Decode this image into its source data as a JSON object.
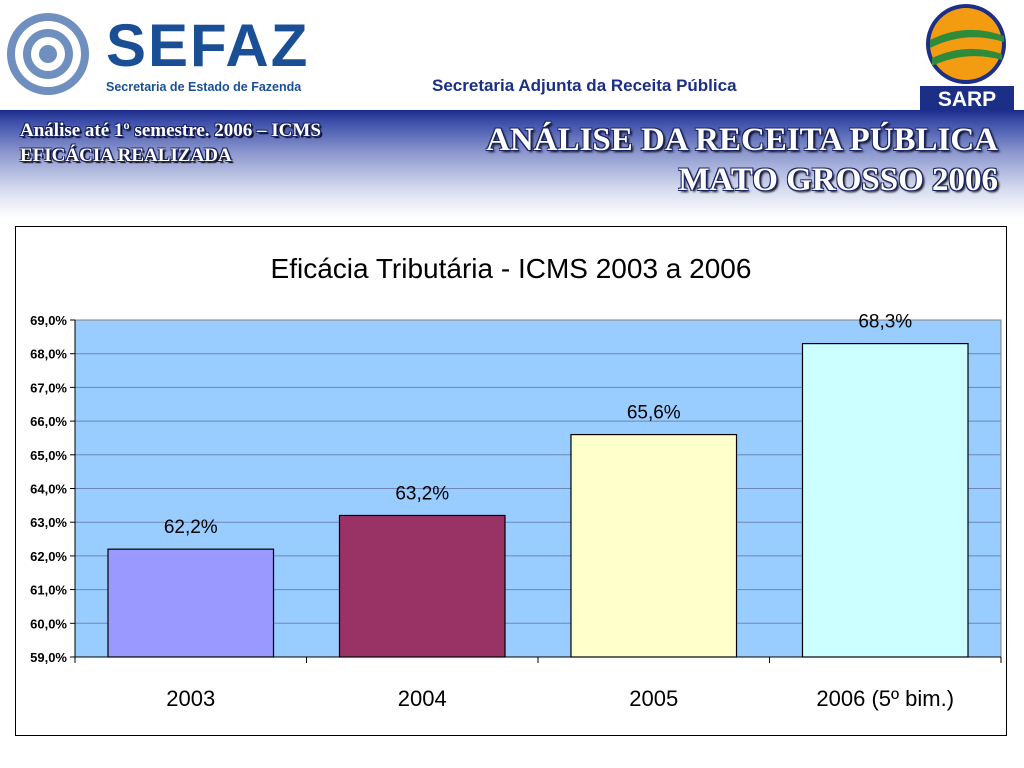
{
  "header": {
    "logo_text": "SEFAZ",
    "logo_subtitle": "Secretaria de Estado de Fazenda",
    "department": "Secretaria Adjunta da Receita Pública",
    "sarp_label": "SARP"
  },
  "banner": {
    "left_line1": "Análise até 1º semestre. 2006 – ICMS",
    "left_line2": "EFICÁCIA REALIZADA",
    "right_line1": "ANÁLISE DA RECEITA PÚBLICA",
    "right_line2": "MATO GROSSO 2006"
  },
  "colors": {
    "plot_bg": "#99ccff",
    "bar_2003": "#9999ff",
    "bar_2004": "#993366",
    "bar_2005": "#ffffcc",
    "bar_2006": "#ccffff",
    "brand_blue": "#1a4f95"
  },
  "chart_data": {
    "type": "bar",
    "title": "Eficácia Tributária - ICMS 2003 a 2006",
    "categories": [
      "2003",
      "2004",
      "2005",
      "2006 (5º bim.)"
    ],
    "values": [
      62.2,
      63.2,
      65.6,
      68.3
    ],
    "data_labels": [
      "62,2%",
      "63,2%",
      "65,6%",
      "68,3%"
    ],
    "ylim": [
      59.0,
      69.0
    ],
    "yticks": [
      59.0,
      60.0,
      61.0,
      62.0,
      63.0,
      64.0,
      65.0,
      66.0,
      67.0,
      68.0,
      69.0
    ],
    "ytick_labels": [
      "59,0%",
      "60,0%",
      "61,0%",
      "62,0%",
      "63,0%",
      "64,0%",
      "65,0%",
      "66,0%",
      "67,0%",
      "68,0%",
      "69,0%"
    ],
    "grid": true,
    "legend": "none"
  }
}
